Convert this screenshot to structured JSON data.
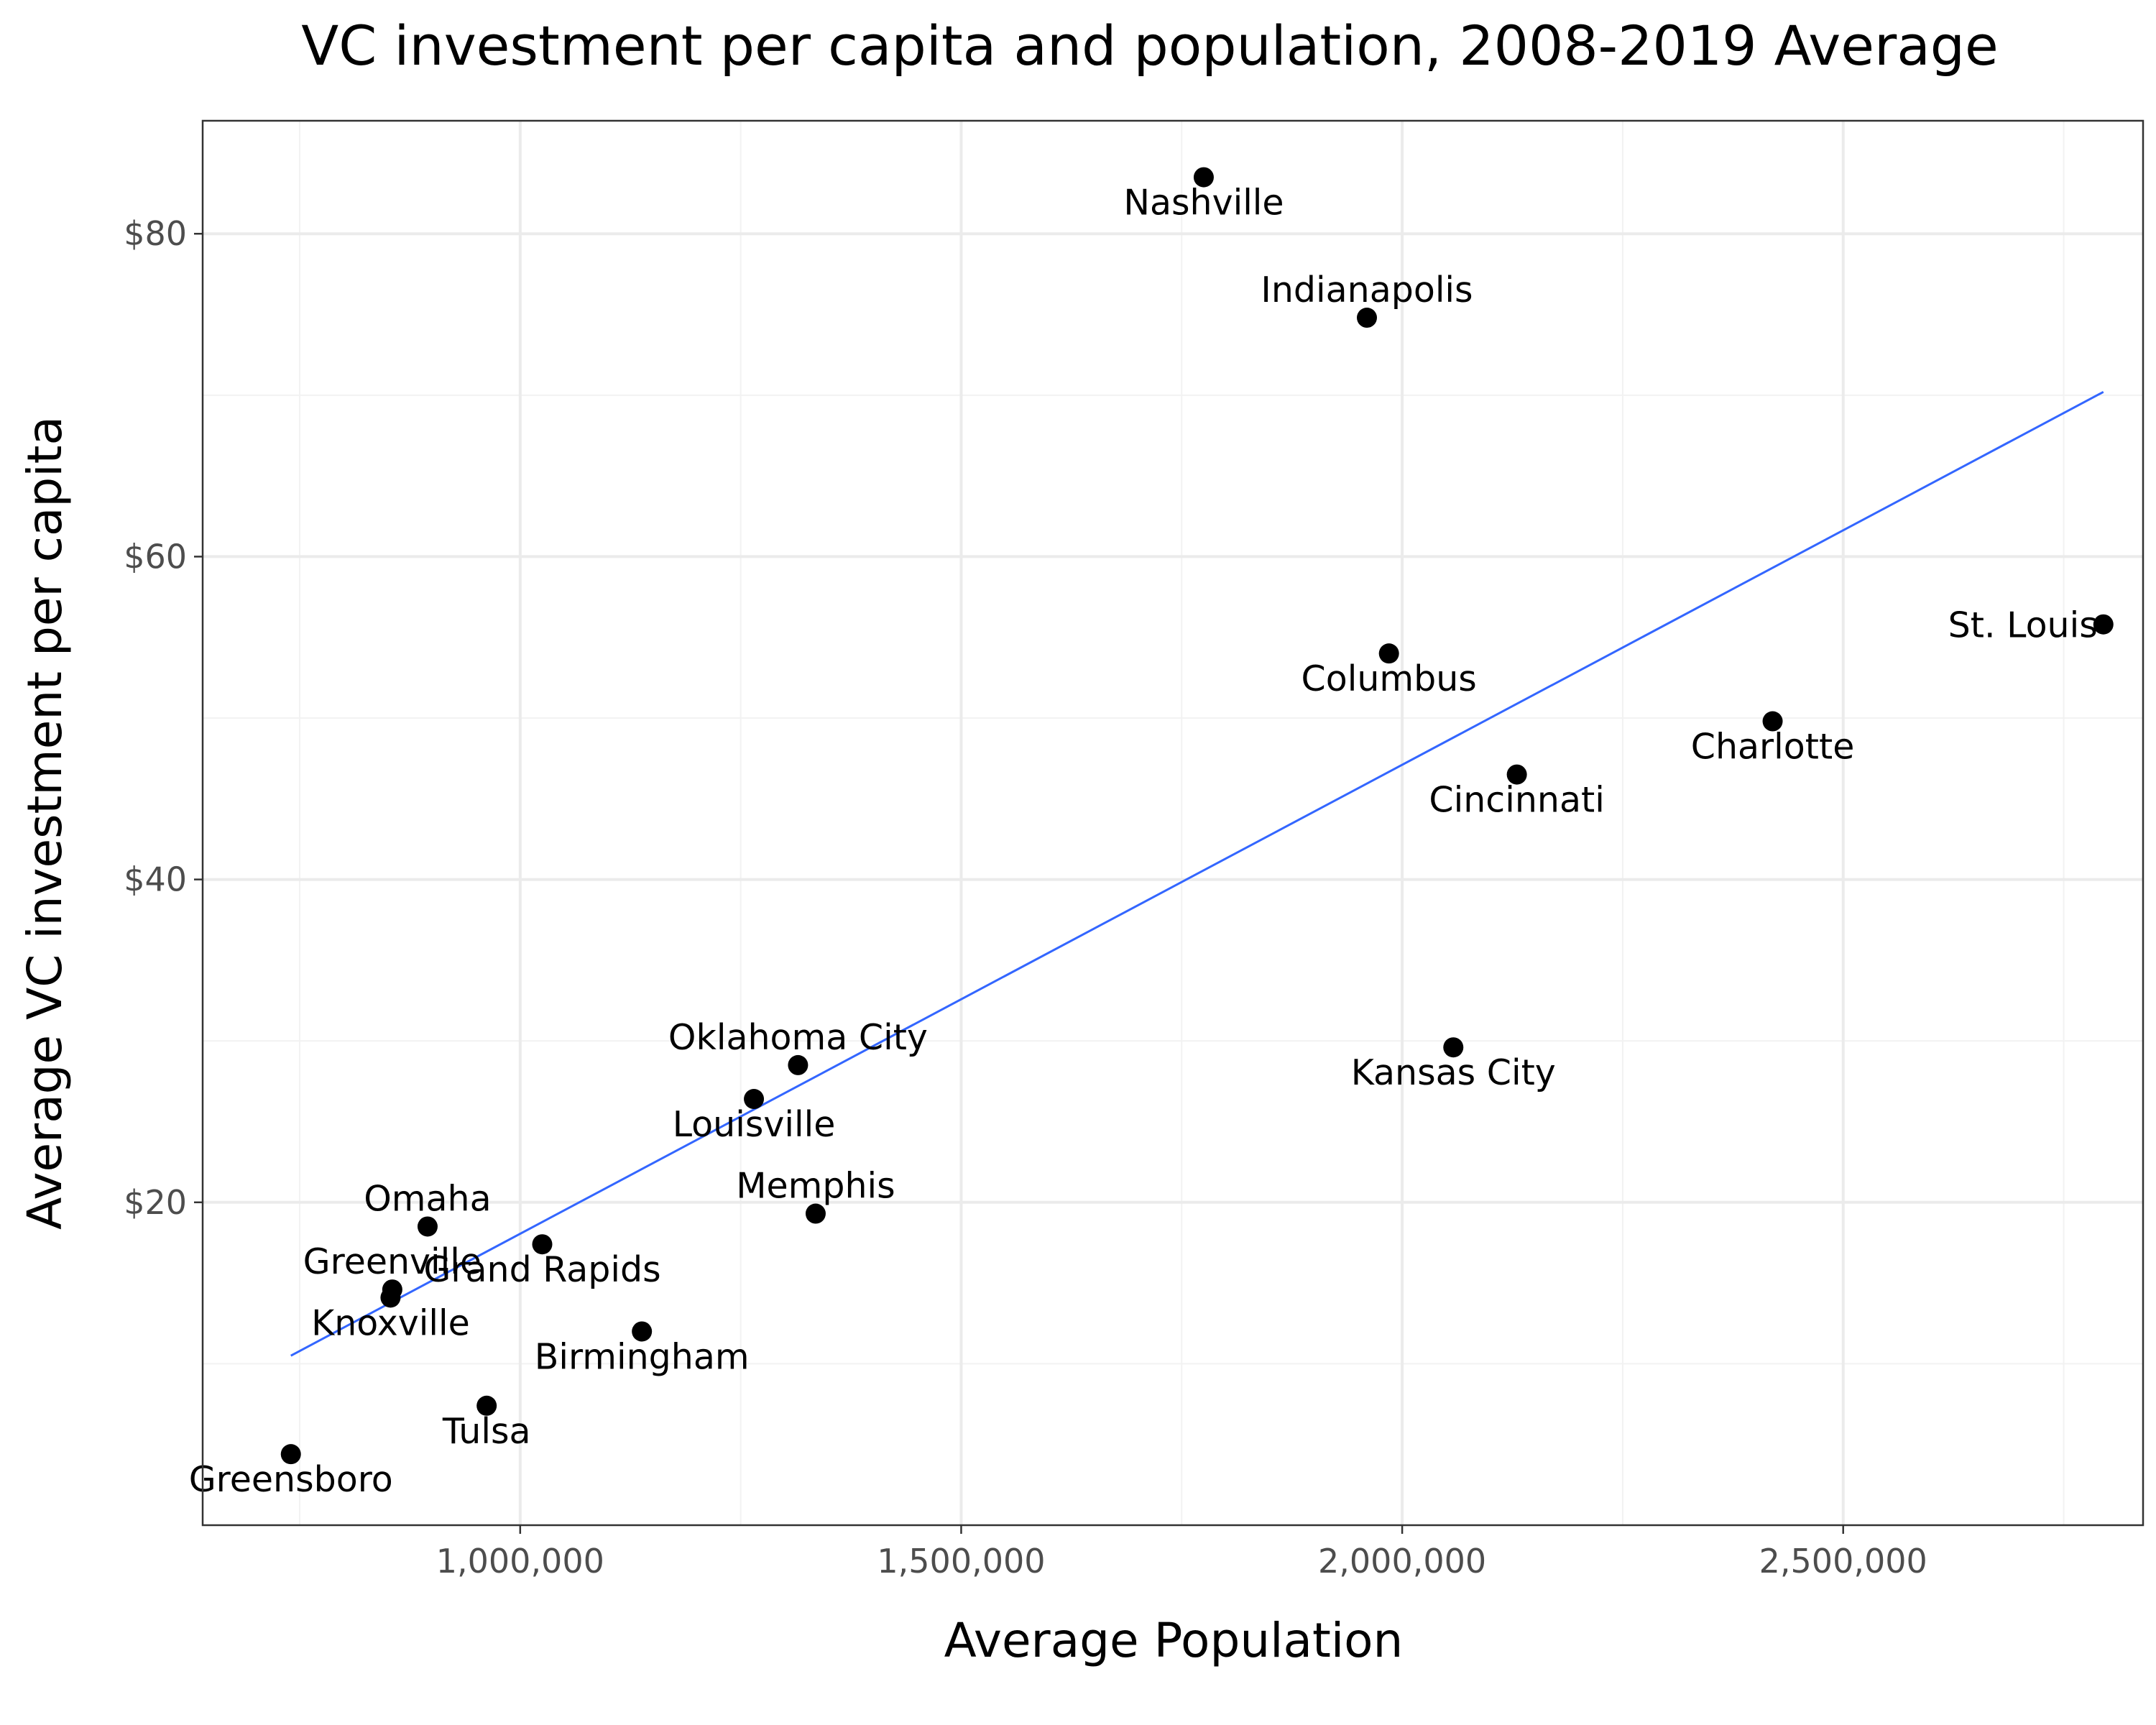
{
  "chart_data": {
    "type": "scatter",
    "title": "VC investment per capita and population, 2008-2019 Average",
    "xlabel": "Average Population",
    "ylabel": "Average VC investment per capita",
    "xlim": [
      640000,
      2840000
    ],
    "ylim": [
      0,
      87
    ],
    "x_ticks": [
      1000000,
      1500000,
      2000000,
      2500000
    ],
    "x_tick_labels": [
      "1,000,000",
      "1,500,000",
      "2,000,000",
      "2,500,000"
    ],
    "y_ticks": [
      20,
      40,
      60,
      80
    ],
    "y_tick_labels": [
      "$20",
      "$40",
      "$60",
      "$80"
    ],
    "grid": true,
    "legend": "none",
    "point_color": "#000000",
    "trend_color": "#3366ff",
    "trend_line": {
      "x": [
        740000,
        2795000
      ],
      "y": [
        10.5,
        70.2
      ]
    },
    "points": [
      {
        "label": "Nashville",
        "x": 1775000,
        "y": 83.5,
        "label_pos": "below"
      },
      {
        "label": "Indianapolis",
        "x": 1960000,
        "y": 74.8,
        "label_pos": "above"
      },
      {
        "label": "St. Louis",
        "x": 2795000,
        "y": 55.8,
        "label_pos": "left"
      },
      {
        "label": "Columbus",
        "x": 1985000,
        "y": 54.0,
        "label_pos": "below"
      },
      {
        "label": "Charlotte",
        "x": 2420000,
        "y": 49.8,
        "label_pos": "below"
      },
      {
        "label": "Cincinnati",
        "x": 2130000,
        "y": 46.5,
        "label_pos": "below"
      },
      {
        "label": "Kansas City",
        "x": 2058000,
        "y": 29.6,
        "label_pos": "below"
      },
      {
        "label": "Oklahoma City",
        "x": 1315000,
        "y": 28.5,
        "label_pos": "above"
      },
      {
        "label": "Louisville",
        "x": 1265000,
        "y": 26.4,
        "label_pos": "below"
      },
      {
        "label": "Memphis",
        "x": 1335000,
        "y": 19.3,
        "label_pos": "above"
      },
      {
        "label": "Omaha",
        "x": 895000,
        "y": 18.5,
        "label_pos": "above"
      },
      {
        "label": "Grand Rapids",
        "x": 1025000,
        "y": 17.4,
        "label_pos": "below"
      },
      {
        "label": "Greenville",
        "x": 855000,
        "y": 14.6,
        "label_pos": "above"
      },
      {
        "label": "Knoxville",
        "x": 853000,
        "y": 14.1,
        "label_pos": "below"
      },
      {
        "label": "Birmingham",
        "x": 1138000,
        "y": 12.0,
        "label_pos": "below"
      },
      {
        "label": "Tulsa",
        "x": 962000,
        "y": 7.4,
        "label_pos": "below"
      },
      {
        "label": "Greensboro",
        "x": 740000,
        "y": 4.4,
        "label_pos": "below"
      }
    ]
  }
}
